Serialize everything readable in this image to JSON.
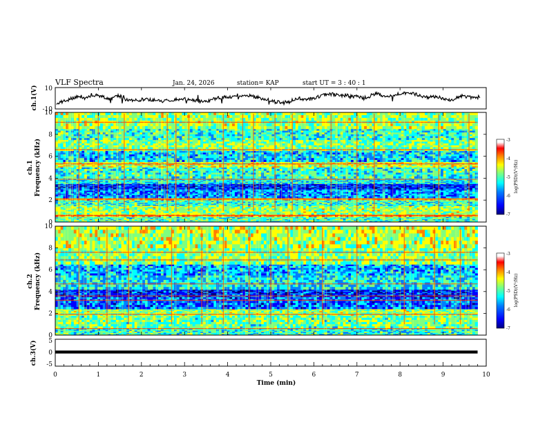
{
  "header": {
    "title": "VLF Spectra",
    "date": "Jan. 24, 2026",
    "station": "station= KAP",
    "start": "start UT =  3 : 40 : 1"
  },
  "colors": {
    "scale": [
      "#00007f",
      "#0000ff",
      "#007fff",
      "#00ffff",
      "#7fff7f",
      "#ffff00",
      "#ff7f00",
      "#ff0000",
      "#7f0000"
    ],
    "trace": "#000000",
    "background": "#ffffff"
  },
  "chart_data": [
    {
      "id": "ch1-waveform",
      "type": "line",
      "ylabel": "ch.1(V)",
      "ylim": [
        -10,
        10
      ],
      "yticks": [
        "10",
        "-10"
      ],
      "xlim": [
        0,
        10
      ],
      "trend_samples": [
        -4.5,
        -3.0,
        -1.5,
        0.5,
        1.5,
        0.0,
        2.0,
        2.5,
        1.5,
        -1.0,
        1.0,
        2.0,
        -1.5,
        -2.5,
        -2.0,
        -1.0,
        -1.5,
        -2.0,
        -3.0,
        -2.0,
        -1.5,
        -1.0,
        -0.5,
        -1.5,
        -2.0,
        -3.0,
        -2.5,
        -1.0,
        0.0,
        1.0,
        1.5,
        1.0,
        2.0,
        2.5,
        1.5,
        0.5,
        -1.0,
        -2.0,
        -3.5,
        -4.5,
        -3.0,
        -1.5,
        0.0,
        -1.0,
        -0.5,
        1.0,
        3.0,
        4.0,
        3.5,
        2.5,
        3.0,
        2.0,
        1.5,
        0.0,
        2.0,
        4.5,
        3.0,
        2.5,
        2.0,
        4.5,
        5.0,
        5.5,
        3.5,
        2.0,
        1.0,
        2.0,
        1.0,
        -1.0,
        -2.5,
        0.5,
        2.5,
        1.0,
        0.5,
        1.5
      ]
    },
    {
      "id": "ch1-spectrogram",
      "type": "heatmap",
      "title": "ch.1",
      "ylabel": "Frequency (kHz)",
      "ylim": [
        0,
        10
      ],
      "yticks": [
        "0",
        "2",
        "4",
        "6",
        "8",
        "10"
      ],
      "xlim": [
        0,
        9.8
      ],
      "color_range": [
        -7,
        -3
      ],
      "colorbar_label": "log(PSD)(V²/Hz)",
      "colorbar_ticks": [
        "-3",
        "-4",
        "-5",
        "-6",
        "-7"
      ],
      "bands": [
        {
          "from": 0.0,
          "to": 0.5,
          "value": -5.2
        },
        {
          "from": 0.5,
          "to": 0.7,
          "value": -4.2
        },
        {
          "from": 0.7,
          "to": 1.5,
          "value": -4.9
        },
        {
          "from": 1.5,
          "to": 2.0,
          "value": -5.3
        },
        {
          "from": 2.0,
          "to": 2.2,
          "value": -4.4
        },
        {
          "from": 2.2,
          "to": 3.0,
          "value": -5.8
        },
        {
          "from": 3.0,
          "to": 3.5,
          "value": -6.2
        },
        {
          "from": 3.5,
          "to": 4.0,
          "value": -5.4
        },
        {
          "from": 4.0,
          "to": 5.0,
          "value": -5.3
        },
        {
          "from": 5.0,
          "to": 5.5,
          "value": -4.7
        },
        {
          "from": 5.5,
          "to": 6.5,
          "value": -5.6
        },
        {
          "from": 6.5,
          "to": 7.5,
          "value": -5.0
        },
        {
          "from": 7.5,
          "to": 8.5,
          "value": -5.3
        },
        {
          "from": 8.5,
          "to": 10.0,
          "value": -4.9
        }
      ],
      "lines_khz": [
        0.6,
        2.1,
        3.9,
        5.3,
        6.6,
        9.1
      ],
      "bursts_min": [
        0.55,
        1.0,
        1.6,
        2.6,
        2.8,
        3.1,
        3.9,
        4.35,
        4.6,
        5.1,
        5.5,
        6.4,
        7.0,
        7.4,
        8.9,
        9.6
      ]
    },
    {
      "id": "ch2-spectrogram",
      "type": "heatmap",
      "title": "ch.2",
      "ylabel": "Frequency (kHz)",
      "ylim": [
        0,
        10
      ],
      "yticks": [
        "0",
        "2",
        "4",
        "6",
        "8",
        "10"
      ],
      "xlim": [
        0,
        9.8
      ],
      "color_range": [
        -7,
        -3
      ],
      "colorbar_label": "log(PSD)(V²/Hz)",
      "colorbar_ticks": [
        "-3",
        "-4",
        "-5",
        "-6",
        "-7"
      ],
      "bands": [
        {
          "from": 0.0,
          "to": 0.6,
          "value": -5.3
        },
        {
          "from": 0.6,
          "to": 1.8,
          "value": -5.1
        },
        {
          "from": 1.8,
          "to": 2.4,
          "value": -4.9
        },
        {
          "from": 2.4,
          "to": 3.5,
          "value": -6.0
        },
        {
          "from": 3.5,
          "to": 4.2,
          "value": -6.2
        },
        {
          "from": 4.2,
          "to": 5.5,
          "value": -5.5
        },
        {
          "from": 5.5,
          "to": 6.5,
          "value": -5.7
        },
        {
          "from": 6.5,
          "to": 8.0,
          "value": -5.0
        },
        {
          "from": 8.0,
          "to": 10.0,
          "value": -4.8
        }
      ],
      "lines_khz": [
        0.6,
        1.9,
        3.2,
        3.6,
        4.7,
        6.9,
        7.6
      ],
      "bursts_min": [
        0.55,
        1.2,
        1.7,
        2.7,
        3.4,
        3.9,
        4.5,
        5.0,
        5.4,
        6.2,
        7.0,
        8.1,
        8.8,
        9.4
      ]
    },
    {
      "id": "ch3-waveform",
      "type": "line",
      "ylabel": "ch.3(V)",
      "ylim": [
        -5,
        5
      ],
      "yticks": [
        "5",
        "0",
        "-5"
      ],
      "xlabel": "Time (min)",
      "xlim": [
        0,
        10
      ],
      "xticks": [
        "0",
        "1",
        "2",
        "3",
        "4",
        "5",
        "6",
        "7",
        "8",
        "9",
        "10"
      ],
      "band": {
        "low": -0.3,
        "high": 0.8,
        "from": 0.0,
        "to": 9.8
      }
    }
  ]
}
